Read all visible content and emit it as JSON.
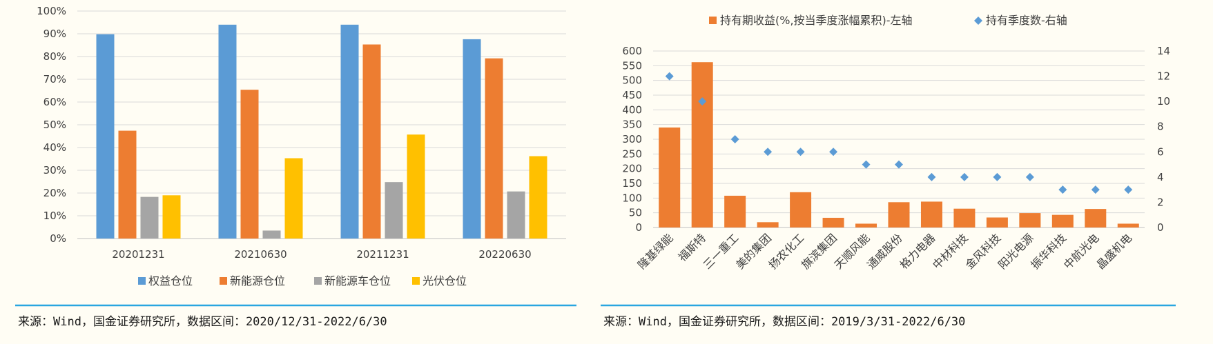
{
  "colors": {
    "blue": "#5b9bd5",
    "orange": "#ed7d31",
    "gray": "#a5a5a5",
    "yellow": "#ffc000",
    "diamond": "#5b9bd5",
    "separator": "#29a6e0",
    "grid": "#d9d9d9",
    "background": "#fffdf4"
  },
  "sources": {
    "left": "来源：Wind，国金证券研究所，数据区间：2020/12/31-2022/6/30",
    "right": "来源：Wind，国金证券研究所，数据区间：2019/3/31-2022/6/30"
  },
  "chart_data": [
    {
      "type": "bar",
      "title": "",
      "categories": [
        "20201231",
        "20210630",
        "20211231",
        "20220630"
      ],
      "series": [
        {
          "name": "权益仓位",
          "values": [
            89.8,
            94.0,
            94.0,
            87.6
          ]
        },
        {
          "name": "新能源仓位",
          "values": [
            47.4,
            65.4,
            85.3,
            79.2
          ]
        },
        {
          "name": "新能源车仓位",
          "values": [
            18.3,
            3.5,
            24.8,
            20.7
          ]
        },
        {
          "name": "光伏仓位",
          "values": [
            19.0,
            35.3,
            45.7,
            36.2
          ]
        }
      ],
      "ylim": [
        0,
        100
      ],
      "yticks": [
        "0%",
        "10%",
        "20%",
        "30%",
        "40%",
        "50%",
        "60%",
        "70%",
        "80%",
        "90%",
        "100%"
      ],
      "grid": true,
      "legend": "bottom"
    },
    {
      "type": "bar",
      "title": "",
      "categories": [
        "隆基绿能",
        "福斯特",
        "三一重工",
        "美的集团",
        "扬农化工",
        "旗滨集团",
        "天顺风能",
        "通威股份",
        "格力电器",
        "中材科技",
        "金风科技",
        "阳光电源",
        "振华科技",
        "中航光电",
        "晶盛机电"
      ],
      "series": [
        {
          "name": "持有期收益(%,按当季度涨幅累积)-左轴",
          "axis": "left",
          "values": [
            340,
            562,
            108,
            18,
            120,
            33,
            13,
            86,
            88,
            64,
            34,
            49,
            43,
            63,
            13
          ]
        },
        {
          "name": "持有季度数-右轴",
          "axis": "right",
          "type": "scatter",
          "values": [
            12,
            10,
            7,
            6,
            6,
            6,
            5,
            5,
            4,
            4,
            4,
            4,
            3,
            3,
            3
          ]
        }
      ],
      "ylim_left": [
        0,
        600
      ],
      "ylim_right": [
        0,
        14
      ],
      "yticks_left": [
        0,
        50,
        100,
        150,
        200,
        250,
        300,
        350,
        400,
        450,
        500,
        550,
        600
      ],
      "yticks_right": [
        0,
        2,
        4,
        6,
        8,
        10,
        12,
        14
      ],
      "grid": true,
      "legend": "top"
    }
  ]
}
